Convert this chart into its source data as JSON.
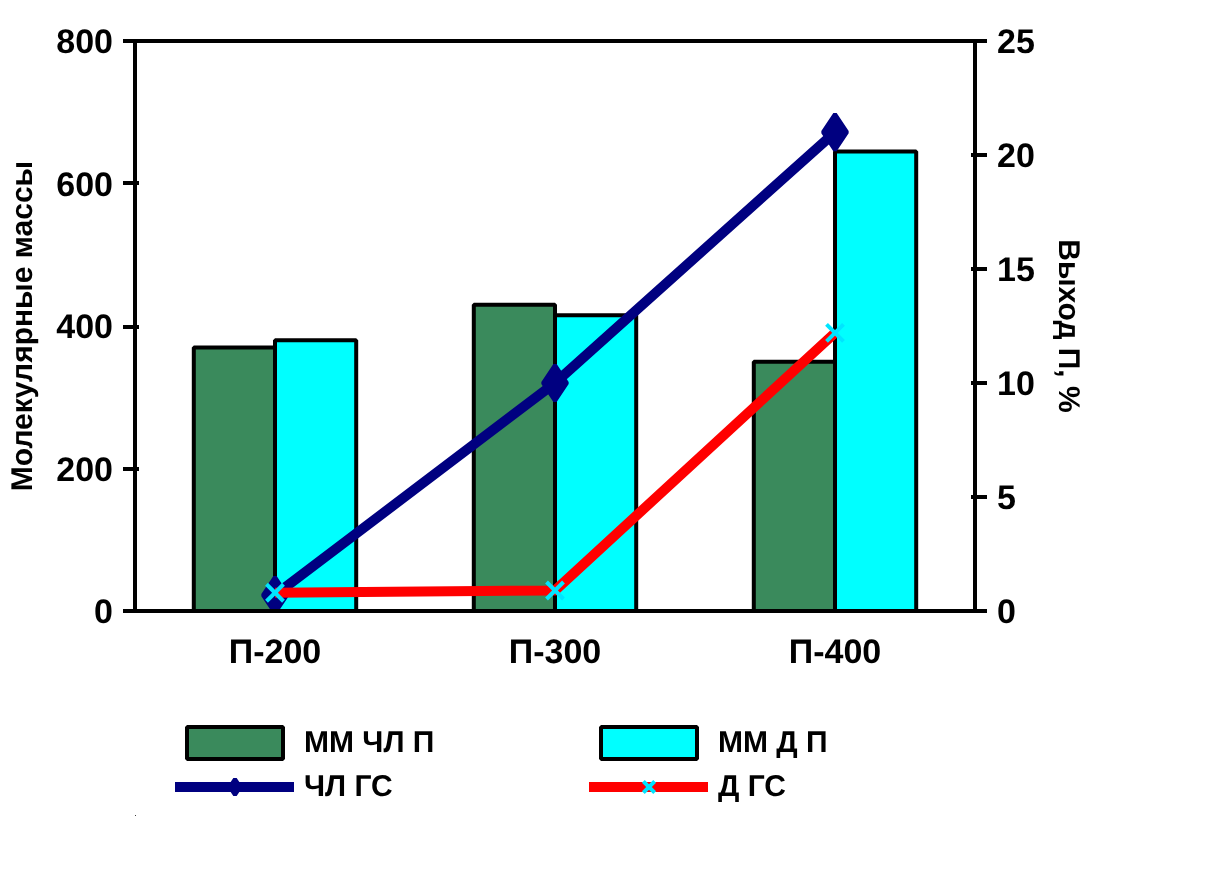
{
  "chart_data": {
    "type": "bar",
    "ylabel": "Молекулярные массы",
    "y2label": "Выход П, %",
    "categories": [
      "П-200",
      "П-300",
      "П-400"
    ],
    "series": [
      {
        "name": "ММ ЧЛ П",
        "color": "#3a8a5c",
        "values": [
          370,
          430,
          350
        ]
      },
      {
        "name": "ММ Д П",
        "color": "#00ffff",
        "values": [
          380,
          415,
          645
        ]
      },
      {
        "name": "ЧЛ ГС",
        "type": "line",
        "axis": "y2",
        "color": "#000080",
        "marker": "diamond",
        "values": [
          0.7,
          10,
          21
        ]
      },
      {
        "name": "Д ГС",
        "type": "line",
        "axis": "y2",
        "color": "#ff0000",
        "marker": "cross",
        "values": [
          0.8,
          0.9,
          12.2
        ]
      }
    ],
    "ylim": [
      0,
      800
    ],
    "yticks": [
      0,
      200,
      400,
      600,
      800
    ],
    "y2lim": [
      0,
      25
    ],
    "y2ticks": [
      0,
      5,
      10,
      15,
      20,
      25
    ],
    "legend": "bottom",
    "grid": false
  }
}
